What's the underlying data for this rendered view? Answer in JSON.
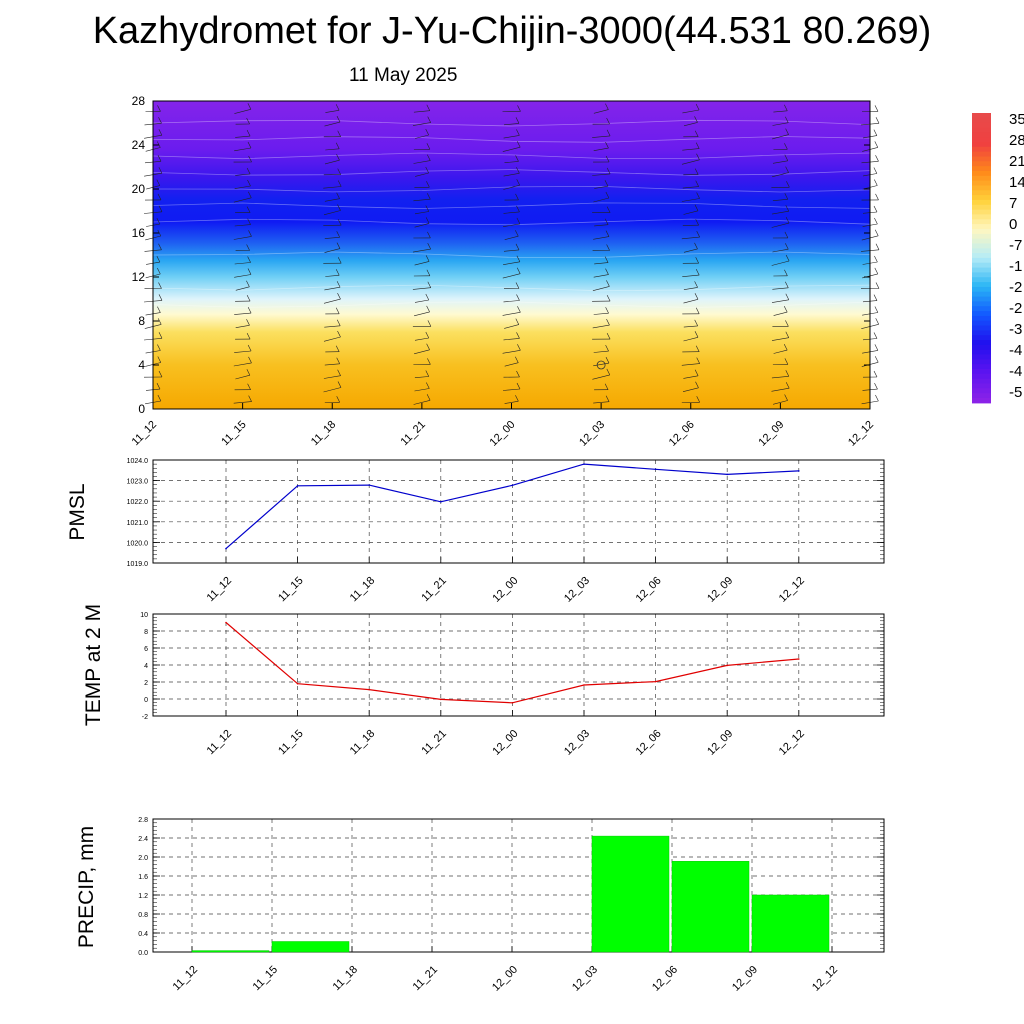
{
  "title": "Kazhydromet for J-Yu-Chijin-3000(44.531 80.269)",
  "subtitle": "11 May 2025",
  "chart_data": [
    {
      "type": "heatmap",
      "x_tick_labels": [
        "11_12",
        "11_15",
        "11_18",
        "11_21",
        "12_00",
        "12_03",
        "12_06",
        "12_09",
        "12_12"
      ],
      "y_ticks": [
        0,
        4,
        8,
        12,
        16,
        20,
        24,
        28
      ],
      "ylim": [
        0,
        28
      ],
      "colorbar_labels": [
        "35",
        "28",
        "21",
        "14",
        "7",
        "0",
        "-7",
        "-1",
        "-2",
        "-2",
        "-3",
        "-4",
        "-4",
        "-5"
      ],
      "colorbar_colors": [
        "#e84a4a",
        "#f04040",
        "#ff8a1a",
        "#ffd23a",
        "#fff7c0",
        "#b5ecf7",
        "#2ab5f5",
        "#1258ff",
        "#2010ee",
        "#5b14f0",
        "#8a22e8"
      ],
      "profile": [
        {
          "h": 0,
          "color": "#f6a800"
        },
        {
          "h": 4,
          "color": "#f8c020"
        },
        {
          "h": 7,
          "color": "#fbe060"
        },
        {
          "h": 8.6,
          "color": "#fffad0"
        },
        {
          "h": 10,
          "color": "#dff4fb"
        },
        {
          "h": 12,
          "color": "#6fcff5"
        },
        {
          "h": 13.5,
          "color": "#2aa6f2"
        },
        {
          "h": 15,
          "color": "#1f63f2"
        },
        {
          "h": 17,
          "color": "#0f1bf3"
        },
        {
          "h": 19,
          "color": "#1220f0"
        },
        {
          "h": 21,
          "color": "#3a17ee"
        },
        {
          "h": 23.5,
          "color": "#6a1cee"
        },
        {
          "h": 28,
          "color": "#8424ea"
        }
      ],
      "grid": false
    },
    {
      "type": "line",
      "ylabel": "PMSL",
      "categories": [
        "11_12",
        "11_15",
        "11_18",
        "11_21",
        "12_00",
        "12_03",
        "12_06",
        "12_09",
        "12_12"
      ],
      "y_tick_labels": [
        "1019.0",
        "1020.0",
        "1021.0",
        "1022.0",
        "1023.0",
        "1024.0"
      ],
      "ylim": [
        1019,
        1024
      ],
      "series": [
        {
          "color": "#0000cc",
          "values": [
            1019.7,
            1022.75,
            1022.78,
            1021.97,
            1022.77,
            1023.8,
            1023.55,
            1023.3,
            1023.47
          ]
        }
      ],
      "grid": true
    },
    {
      "type": "line",
      "ylabel": "TEMP at 2 M",
      "categories": [
        "11_12",
        "11_15",
        "11_18",
        "11_21",
        "12_00",
        "12_03",
        "12_06",
        "12_09",
        "12_12"
      ],
      "y_tick_labels": [
        "-2",
        "0",
        "2",
        "4",
        "6",
        "8",
        "10"
      ],
      "ylim": [
        -2,
        10
      ],
      "series": [
        {
          "color": "#e00000",
          "values": [
            9.0,
            1.8,
            1.1,
            -0.05,
            -0.45,
            1.65,
            2.05,
            3.95,
            4.7
          ]
        }
      ],
      "grid": true
    },
    {
      "type": "bar",
      "ylabel": "PRECIP, mm",
      "categories": [
        "11_12",
        "11_15",
        "11_18",
        "11_21",
        "12_00",
        "12_03",
        "12_06",
        "12_09",
        "12_12"
      ],
      "y_tick_labels": [
        "0.0",
        "0.4",
        "0.8",
        "1.2",
        "1.6",
        "2.0",
        "2.4",
        "2.8"
      ],
      "ylim": [
        0,
        2.8
      ],
      "values": [
        0,
        0.03,
        0.22,
        0,
        0,
        0,
        2.44,
        1.91,
        1.2
      ],
      "bar_color": "#00ff00",
      "grid": true
    }
  ]
}
